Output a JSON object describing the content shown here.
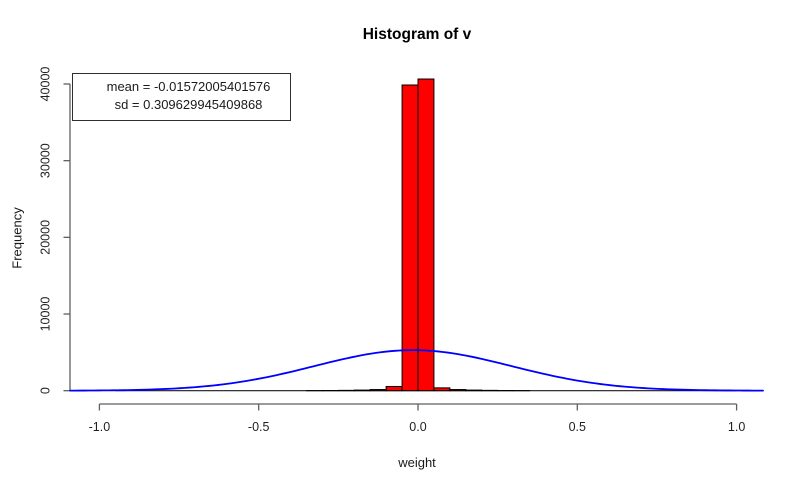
{
  "chart_data": {
    "type": "bar",
    "chart_kind": "histogram",
    "title": "Histogram of v",
    "xlabel": "weight",
    "ylabel": "Frequency",
    "grid": false,
    "legend_position": "top-left",
    "x_ticks": {
      "values": [
        -1.0,
        -0.5,
        0.0,
        0.5,
        1.0
      ],
      "labels": [
        "-1.0",
        "-0.5",
        "0.0",
        "0.5",
        "1.0"
      ]
    },
    "y_ticks": {
      "values": [
        0,
        10000,
        20000,
        30000,
        40000
      ],
      "labels": [
        "0",
        "10000",
        "20000",
        "30000",
        "40000"
      ]
    },
    "xlim": [
      -1.09,
      1.08
    ],
    "ylim": [
      0,
      40650
    ],
    "bin_width": 0.05,
    "hist_range": [
      -0.95,
      1.0
    ],
    "bins": [
      {
        "x0": -0.35,
        "x1": -0.3,
        "count": 10
      },
      {
        "x0": -0.3,
        "x1": -0.25,
        "count": 25
      },
      {
        "x0": -0.25,
        "x1": -0.2,
        "count": 45
      },
      {
        "x0": -0.2,
        "x1": -0.15,
        "count": 80
      },
      {
        "x0": -0.15,
        "x1": -0.1,
        "count": 150
      },
      {
        "x0": -0.1,
        "x1": -0.05,
        "count": 550
      },
      {
        "x0": -0.05,
        "x1": 0.0,
        "count": 39870
      },
      {
        "x0": 0.0,
        "x1": 0.05,
        "count": 40650
      },
      {
        "x0": 0.05,
        "x1": 0.1,
        "count": 370
      },
      {
        "x0": 0.1,
        "x1": 0.15,
        "count": 150
      },
      {
        "x0": 0.15,
        "x1": 0.2,
        "count": 80
      },
      {
        "x0": 0.2,
        "x1": 0.25,
        "count": 45
      },
      {
        "x0": 0.25,
        "x1": 0.3,
        "count": 25
      },
      {
        "x0": 0.3,
        "x1": 0.35,
        "count": 10
      }
    ],
    "annotation": {
      "line1": "mean = -0.01572005401576",
      "line2": "sd = 0.309629945409868"
    },
    "curve": {
      "shape": "normal-density",
      "mean": -0.01572005401576,
      "sd": 0.309629945409868,
      "peak_count": 5290,
      "x_range": [
        -1.092,
        1.083
      ],
      "color": "#0000FF"
    },
    "colors": {
      "bar_fill": "#FF0000",
      "bar_border": "#000000",
      "curve": "#0000FF",
      "baseline": "#1a1a1a",
      "axis": "#5f5f5f",
      "tick_text": "#1f1f1f",
      "background": "#FFFFFF"
    }
  }
}
